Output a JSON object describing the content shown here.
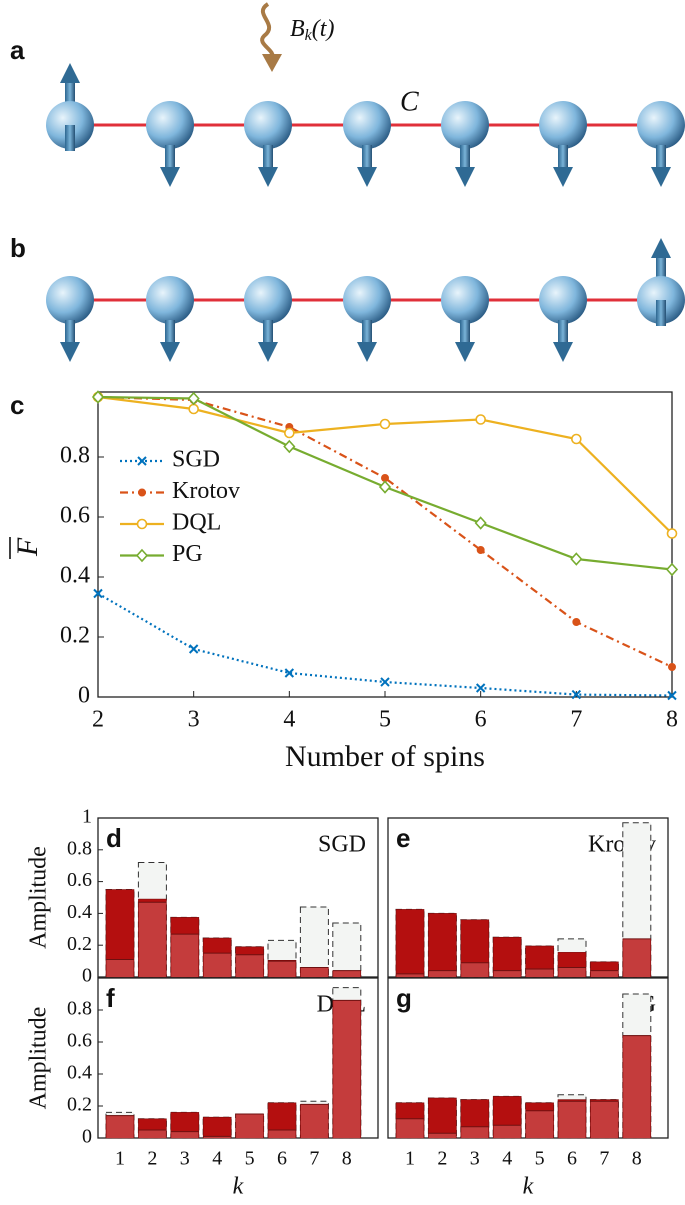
{
  "diagram": {
    "panel_a": "a",
    "panel_b": "b",
    "field": {
      "symbol": "B",
      "subscript": "k",
      "argument": "(t)"
    },
    "coupling": "C"
  },
  "chart_data": [
    {
      "type": "line",
      "panel_label": "c",
      "xlabel": "Number of spins",
      "ylabel": "F",
      "x": [
        2,
        3,
        4,
        5,
        6,
        7,
        8
      ],
      "xlim": [
        2,
        8
      ],
      "xticks": [
        2,
        3,
        4,
        5,
        6,
        7,
        8
      ],
      "ylim": [
        0,
        1
      ],
      "yticks": [
        0,
        0.2,
        0.4,
        0.6,
        0.8
      ],
      "legend": "left",
      "series": [
        {
          "name": "SGD",
          "color": "#0072bd",
          "marker": "x",
          "linestyle": "dotted",
          "values": [
            0.345,
            0.16,
            0.08,
            0.05,
            0.03,
            0.008,
            0.005
          ]
        },
        {
          "name": "Krotov",
          "color": "#d95319",
          "marker": "star",
          "linestyle": "dashdot",
          "values": [
            1.0,
            0.99,
            0.9,
            0.73,
            0.49,
            0.25,
            0.1
          ]
        },
        {
          "name": "DQL",
          "color": "#edb120",
          "marker": "circle",
          "linestyle": "solid",
          "values": [
            1.0,
            0.96,
            0.88,
            0.91,
            0.925,
            0.86,
            0.545
          ]
        },
        {
          "name": "PG",
          "color": "#77ac30",
          "marker": "diamond",
          "linestyle": "solid",
          "values": [
            1.0,
            0.995,
            0.835,
            0.7,
            0.58,
            0.46,
            0.425
          ]
        }
      ]
    },
    {
      "type": "bar",
      "panel_label": "d",
      "label": "SGD",
      "ylabel": "Amplitude",
      "categories": [
        null,
        null,
        null,
        null,
        null,
        null,
        null,
        null
      ],
      "ylim": [
        0,
        1
      ],
      "yticks": [
        0,
        0.2,
        0.4,
        0.6,
        0.8,
        1
      ],
      "series": [
        {
          "style": "outline",
          "color": "#f3f5f3",
          "values": [
            0.55,
            0.72,
            0.375,
            0.245,
            0.19,
            0.23,
            0.44,
            0.34
          ]
        },
        {
          "style": "fill",
          "color": "#b40f0f",
          "values": [
            0.55,
            0.49,
            0.375,
            0.245,
            0.19,
            0.105,
            0.06,
            0.04
          ]
        },
        {
          "style": "level",
          "color": "#c43c3c",
          "values": [
            0.11,
            0.47,
            0.27,
            0.15,
            0.14,
            0.1,
            0.06,
            0.04
          ]
        }
      ]
    },
    {
      "type": "bar",
      "panel_label": "e",
      "label": "Krotov",
      "categories": [
        null,
        null,
        null,
        null,
        null,
        null,
        null,
        null
      ],
      "ylim": [
        0,
        1
      ],
      "series": [
        {
          "style": "outline",
          "color": "#f3f5f3",
          "values": [
            0.425,
            0.4,
            0.36,
            0.25,
            0.195,
            0.24,
            0.095,
            0.97
          ]
        },
        {
          "style": "fill",
          "color": "#b40f0f",
          "values": [
            0.425,
            0.4,
            0.36,
            0.25,
            0.195,
            0.155,
            0.095,
            0.24
          ]
        },
        {
          "style": "level",
          "color": "#c43c3c",
          "values": [
            0.02,
            0.04,
            0.09,
            0.04,
            0.05,
            0.06,
            0.04,
            0.24
          ]
        }
      ]
    },
    {
      "type": "bar",
      "panel_label": "f",
      "label": "DQL",
      "ylabel": "Amplitude",
      "xlabel": "k",
      "categories": [
        "1",
        "2",
        "3",
        "4",
        "5",
        "6",
        "7",
        "8"
      ],
      "ylim": [
        0,
        1
      ],
      "yticks": [
        0,
        0.2,
        0.4,
        0.6,
        0.8
      ],
      "series": [
        {
          "style": "outline",
          "color": "#f3f5f3",
          "values": [
            0.16,
            0.12,
            0.16,
            0.13,
            0.15,
            0.22,
            0.23,
            0.94
          ]
        },
        {
          "style": "fill",
          "color": "#b40f0f",
          "values": [
            0.14,
            0.12,
            0.16,
            0.13,
            0.15,
            0.22,
            0.21,
            0.86
          ]
        },
        {
          "style": "level",
          "color": "#c43c3c",
          "values": [
            0.14,
            0.05,
            0.04,
            0.01,
            0.15,
            0.05,
            0.21,
            0.86
          ]
        }
      ]
    },
    {
      "type": "bar",
      "panel_label": "g",
      "label": "PG",
      "xlabel": "k",
      "categories": [
        "1",
        "2",
        "3",
        "4",
        "5",
        "6",
        "7",
        "8"
      ],
      "ylim": [
        0,
        1
      ],
      "series": [
        {
          "style": "outline",
          "color": "#f3f5f3",
          "values": [
            0.22,
            0.25,
            0.24,
            0.26,
            0.22,
            0.27,
            0.24,
            0.9
          ]
        },
        {
          "style": "fill",
          "color": "#b40f0f",
          "values": [
            0.22,
            0.25,
            0.24,
            0.26,
            0.22,
            0.24,
            0.24,
            0.64
          ]
        },
        {
          "style": "level",
          "color": "#c43c3c",
          "values": [
            0.12,
            0.03,
            0.07,
            0.08,
            0.17,
            0.23,
            0.23,
            0.64
          ]
        }
      ]
    }
  ]
}
